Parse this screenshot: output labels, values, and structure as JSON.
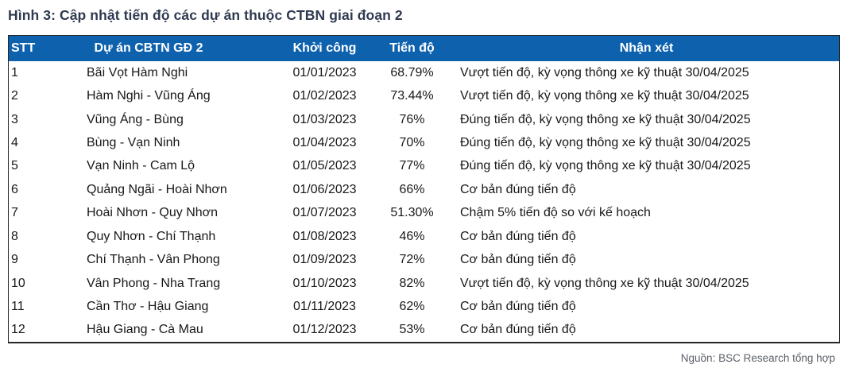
{
  "title": "Hình 3: Cập nhật tiến độ các dự án thuộc CTBN giai đoạn 2",
  "colors": {
    "header_bg": "#0e61ad",
    "header_text": "#ffffff",
    "title_text": "#2f3a50",
    "body_text": "#181818",
    "source_text": "#5b6067",
    "table_border": "#262626"
  },
  "table": {
    "columns": {
      "stt": "STT",
      "project": "Dự án CBTN GĐ 2",
      "start": "Khởi công",
      "progress": "Tiến độ",
      "note": "Nhận xét"
    },
    "rows": [
      {
        "stt": "1",
        "project": "Bãi Vọt Hàm Nghi",
        "start": "01/01/2023",
        "progress": "68.79%",
        "note": "Vượt tiến độ, kỳ vọng thông xe kỹ thuật 30/04/2025"
      },
      {
        "stt": "2",
        "project": "Hàm Nghi - Vũng Áng",
        "start": "01/02/2023",
        "progress": "73.44%",
        "note": "Vượt tiến độ, kỳ vọng thông xe kỹ thuật 30/04/2025"
      },
      {
        "stt": "3",
        "project": "Vũng Áng - Bùng",
        "start": "01/03/2023",
        "progress": "76%",
        "note": "Đúng tiến độ, kỳ vọng thông xe kỹ thuật 30/04/2025"
      },
      {
        "stt": "4",
        "project": "Bùng - Vạn Ninh",
        "start": "01/04/2023",
        "progress": "70%",
        "note": "Đúng tiến độ, kỳ vọng thông xe kỹ thuật 30/04/2025"
      },
      {
        "stt": "5",
        "project": "Vạn Ninh - Cam Lộ",
        "start": "01/05/2023",
        "progress": "77%",
        "note": "Đúng tiến độ, kỳ vọng thông xe kỹ thuật 30/04/2025"
      },
      {
        "stt": "6",
        "project": "Quảng Ngãi - Hoài Nhơn",
        "start": "01/06/2023",
        "progress": "66%",
        "note": "Cơ bản đúng tiến độ"
      },
      {
        "stt": "7",
        "project": "Hoài Nhơn - Quy Nhơn",
        "start": "01/07/2023",
        "progress": "51.30%",
        "note": "Chậm 5% tiến độ so với kế hoạch"
      },
      {
        "stt": "8",
        "project": "Quy Nhơn - Chí Thạnh",
        "start": "01/08/2023",
        "progress": "46%",
        "note": "Cơ bản đúng tiến độ"
      },
      {
        "stt": "9",
        "project": "Chí Thạnh - Vân Phong",
        "start": "01/09/2023",
        "progress": "72%",
        "note": "Cơ bản đúng tiến độ"
      },
      {
        "stt": "10",
        "project": "Vân Phong - Nha Trang",
        "start": "01/10/2023",
        "progress": "82%",
        "note": "Vượt tiến độ, kỳ vọng thông xe kỹ thuật 30/04/2025"
      },
      {
        "stt": "11",
        "project": "Cần Thơ - Hậu Giang",
        "start": "01/11/2023",
        "progress": "62%",
        "note": "Cơ bản đúng tiến độ"
      },
      {
        "stt": "12",
        "project": "Hậu Giang - Cà Mau",
        "start": "01/12/2023",
        "progress": "53%",
        "note": "Cơ bản đúng tiến độ"
      }
    ]
  },
  "footer": {
    "source": "Nguồn: BSC Research tổng hợp"
  }
}
